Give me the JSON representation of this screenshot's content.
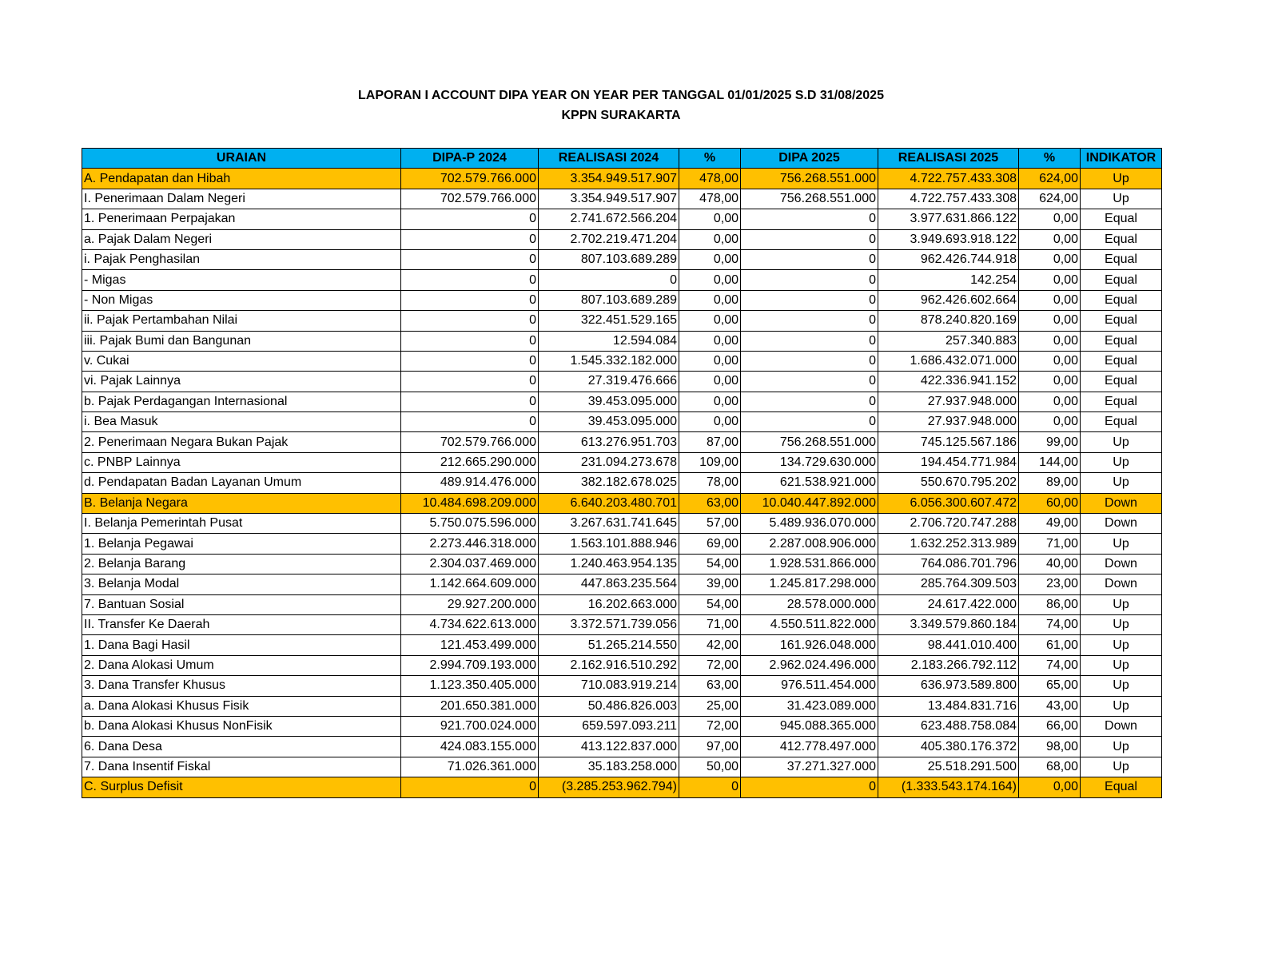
{
  "header": {
    "title": "LAPORAN I ACCOUNT DIPA YEAR ON YEAR PER TANGGAL 01/01/2025 S.D 31/08/2025",
    "subtitle": "KPPN SURAKARTA"
  },
  "table": {
    "columns": [
      "URAIAN",
      "DIPA-P 2024",
      "REALISASI 2024",
      "%",
      "DIPA 2025",
      "REALISASI 2025",
      "%",
      "INDIKATOR"
    ],
    "rows": [
      [
        "A. Pendapatan dan Hibah",
        "702.579.766.000",
        "3.354.949.517.907",
        "478,00",
        "756.268.551.000",
        "4.722.757.433.308",
        "624,00",
        "Up"
      ],
      [
        "I. Penerimaan Dalam Negeri",
        "702.579.766.000",
        "3.354.949.517.907",
        "478,00",
        "756.268.551.000",
        "4.722.757.433.308",
        "624,00",
        "Up"
      ],
      [
        "1. Penerimaan Perpajakan",
        "0",
        "2.741.672.566.204",
        "0,00",
        "0",
        "3.977.631.866.122",
        "0,00",
        "Equal"
      ],
      [
        "a. Pajak Dalam Negeri",
        "0",
        "2.702.219.471.204",
        "0,00",
        "0",
        "3.949.693.918.122",
        "0,00",
        "Equal"
      ],
      [
        "i. Pajak Penghasilan",
        "0",
        "807.103.689.289",
        "0,00",
        "0",
        "962.426.744.918",
        "0,00",
        "Equal"
      ],
      [
        "- Migas",
        "0",
        "0",
        "0,00",
        "0",
        "142.254",
        "0,00",
        "Equal"
      ],
      [
        "- Non Migas",
        "0",
        "807.103.689.289",
        "0,00",
        "0",
        "962.426.602.664",
        "0,00",
        "Equal"
      ],
      [
        "ii. Pajak Pertambahan Nilai",
        "0",
        "322.451.529.165",
        "0,00",
        "0",
        "878.240.820.169",
        "0,00",
        "Equal"
      ],
      [
        "iii. Pajak Bumi dan Bangunan",
        "0",
        "12.594.084",
        "0,00",
        "0",
        "257.340.883",
        "0,00",
        "Equal"
      ],
      [
        "v. Cukai",
        "0",
        "1.545.332.182.000",
        "0,00",
        "0",
        "1.686.432.071.000",
        "0,00",
        "Equal"
      ],
      [
        "vi. Pajak Lainnya",
        "0",
        "27.319.476.666",
        "0,00",
        "0",
        "422.336.941.152",
        "0,00",
        "Equal"
      ],
      [
        "b. Pajak Perdagangan Internasional",
        "0",
        "39.453.095.000",
        "0,00",
        "0",
        "27.937.948.000",
        "0,00",
        "Equal"
      ],
      [
        "i. Bea Masuk",
        "0",
        "39.453.095.000",
        "0,00",
        "0",
        "27.937.948.000",
        "0,00",
        "Equal"
      ],
      [
        "2. Penerimaan Negara Bukan Pajak",
        "702.579.766.000",
        "613.276.951.703",
        "87,00",
        "756.268.551.000",
        "745.125.567.186",
        "99,00",
        "Up"
      ],
      [
        "c. PNBP Lainnya",
        "212.665.290.000",
        "231.094.273.678",
        "109,00",
        "134.729.630.000",
        "194.454.771.984",
        "144,00",
        "Up"
      ],
      [
        "d. Pendapatan Badan Layanan Umum",
        "489.914.476.000",
        "382.182.678.025",
        "78,00",
        "621.538.921.000",
        "550.670.795.202",
        "89,00",
        "Up"
      ],
      [
        "B. Belanja Negara",
        "10.484.698.209.000",
        "6.640.203.480.701",
        "63,00",
        "10.040.447.892.000",
        "6.056.300.607.472",
        "60,00",
        "Down"
      ],
      [
        "I. Belanja Pemerintah Pusat",
        "5.750.075.596.000",
        "3.267.631.741.645",
        "57,00",
        "5.489.936.070.000",
        "2.706.720.747.288",
        "49,00",
        "Down"
      ],
      [
        "1. Belanja Pegawai",
        "2.273.446.318.000",
        "1.563.101.888.946",
        "69,00",
        "2.287.008.906.000",
        "1.632.252.313.989",
        "71,00",
        "Up"
      ],
      [
        "2. Belanja Barang",
        "2.304.037.469.000",
        "1.240.463.954.135",
        "54,00",
        "1.928.531.866.000",
        "764.086.701.796",
        "40,00",
        "Down"
      ],
      [
        "3. Belanja Modal",
        "1.142.664.609.000",
        "447.863.235.564",
        "39,00",
        "1.245.817.298.000",
        "285.764.309.503",
        "23,00",
        "Down"
      ],
      [
        "7. Bantuan Sosial",
        "29.927.200.000",
        "16.202.663.000",
        "54,00",
        "28.578.000.000",
        "24.617.422.000",
        "86,00",
        "Up"
      ],
      [
        "II. Transfer Ke Daerah",
        "4.734.622.613.000",
        "3.372.571.739.056",
        "71,00",
        "4.550.511.822.000",
        "3.349.579.860.184",
        "74,00",
        "Up"
      ],
      [
        "1. Dana Bagi Hasil",
        "121.453.499.000",
        "51.265.214.550",
        "42,00",
        "161.926.048.000",
        "98.441.010.400",
        "61,00",
        "Up"
      ],
      [
        "2. Dana Alokasi Umum",
        "2.994.709.193.000",
        "2.162.916.510.292",
        "72,00",
        "2.962.024.496.000",
        "2.183.266.792.112",
        "74,00",
        "Up"
      ],
      [
        "3. Dana Transfer Khusus",
        "1.123.350.405.000",
        "710.083.919.214",
        "63,00",
        "976.511.454.000",
        "636.973.589.800",
        "65,00",
        "Up"
      ],
      [
        "a. Dana Alokasi Khusus Fisik",
        "201.650.381.000",
        "50.486.826.003",
        "25,00",
        "31.423.089.000",
        "13.484.831.716",
        "43,00",
        "Up"
      ],
      [
        "b. Dana Alokasi Khusus NonFisik",
        "921.700.024.000",
        "659.597.093.211",
        "72,00",
        "945.088.365.000",
        "623.488.758.084",
        "66,00",
        "Down"
      ],
      [
        "6. Dana Desa",
        "424.083.155.000",
        "413.122.837.000",
        "97,00",
        "412.778.497.000",
        "405.380.176.372",
        "98,00",
        "Up"
      ],
      [
        "7. Dana Insentif Fiskal",
        "71.026.361.000",
        "35.183.258.000",
        "50,00",
        "37.271.327.000",
        "25.518.291.500",
        "68,00",
        "Up"
      ],
      [
        "C. Surplus Defisit",
        "0",
        "(3.285.253.962.794)",
        "0",
        "0",
        "(1.333.543.174.164)",
        "0,00",
        "Equal"
      ]
    ]
  }
}
